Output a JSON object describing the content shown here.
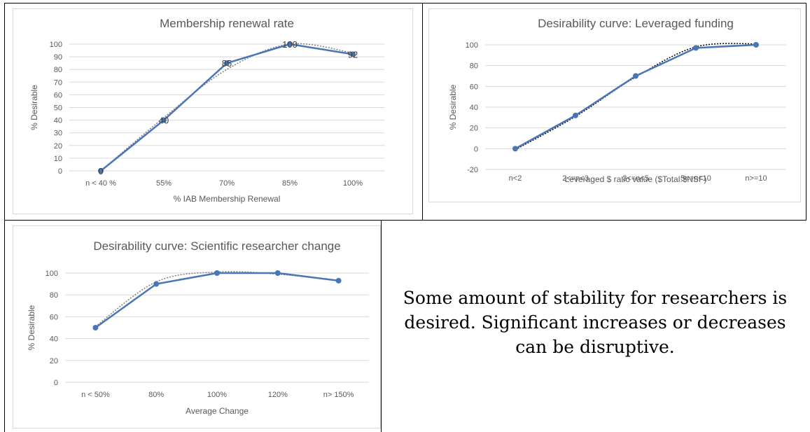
{
  "chart_data": [
    {
      "type": "line",
      "title": "Membership renewal rate",
      "xlabel": "% IAB Membership Renewal",
      "ylabel": "% Desirable",
      "categories": [
        "n < 40 %",
        "55%",
        "70%",
        "85%",
        "100%"
      ],
      "ylim": [
        0,
        100
      ],
      "yticks": [
        0,
        10,
        20,
        30,
        40,
        50,
        60,
        70,
        80,
        90,
        100
      ],
      "grid": true,
      "series": [
        {
          "values": [
            0,
            40,
            85,
            100,
            92
          ],
          "data_labels": [
            "0",
            "40",
            "85",
            "100",
            "92"
          ]
        }
      ],
      "trendline": [
        0,
        42,
        80,
        100,
        93
      ],
      "line_color": "#4a76b8",
      "trend_color": "#7f7f7f"
    },
    {
      "type": "line",
      "title": "Desirability curve: Leveraged funding",
      "xlabel": "Leveraged $ ratio value ($Total:$NSF)",
      "ylabel": "% Desirable",
      "categories": [
        "n<2",
        "2<=n<3",
        "3<=n<5",
        "5<=n<10",
        "n>=10"
      ],
      "ylim": [
        -20,
        100
      ],
      "yticks": [
        -20,
        0,
        20,
        40,
        60,
        80,
        100
      ],
      "grid": true,
      "series": [
        {
          "values": [
            0,
            32,
            70,
            97,
            100
          ]
        }
      ],
      "trendline": [
        -1,
        31,
        69,
        98,
        101
      ],
      "line_color": "#4a76b8",
      "trend_color": "#000000"
    },
    {
      "type": "line",
      "title": "Desirability curve: Scientific researcher change",
      "xlabel": "Average Change",
      "ylabel": "% Desirable",
      "categories": [
        "n < 50%",
        "80%",
        "100%",
        "120%",
        "n> 150%"
      ],
      "ylim": [
        0,
        100
      ],
      "yticks": [
        0,
        20,
        40,
        60,
        80,
        100
      ],
      "grid": true,
      "series": [
        {
          "values": [
            50,
            90,
            100,
            100,
            93
          ]
        }
      ],
      "trendline": [
        51,
        92,
        101,
        99,
        93
      ],
      "line_color": "#4a76b8",
      "trend_color": "#7f7f7f"
    }
  ],
  "note": {
    "text": "Some amount of stability for researchers is desired. Significant increases or decreases can be disruptive."
  }
}
